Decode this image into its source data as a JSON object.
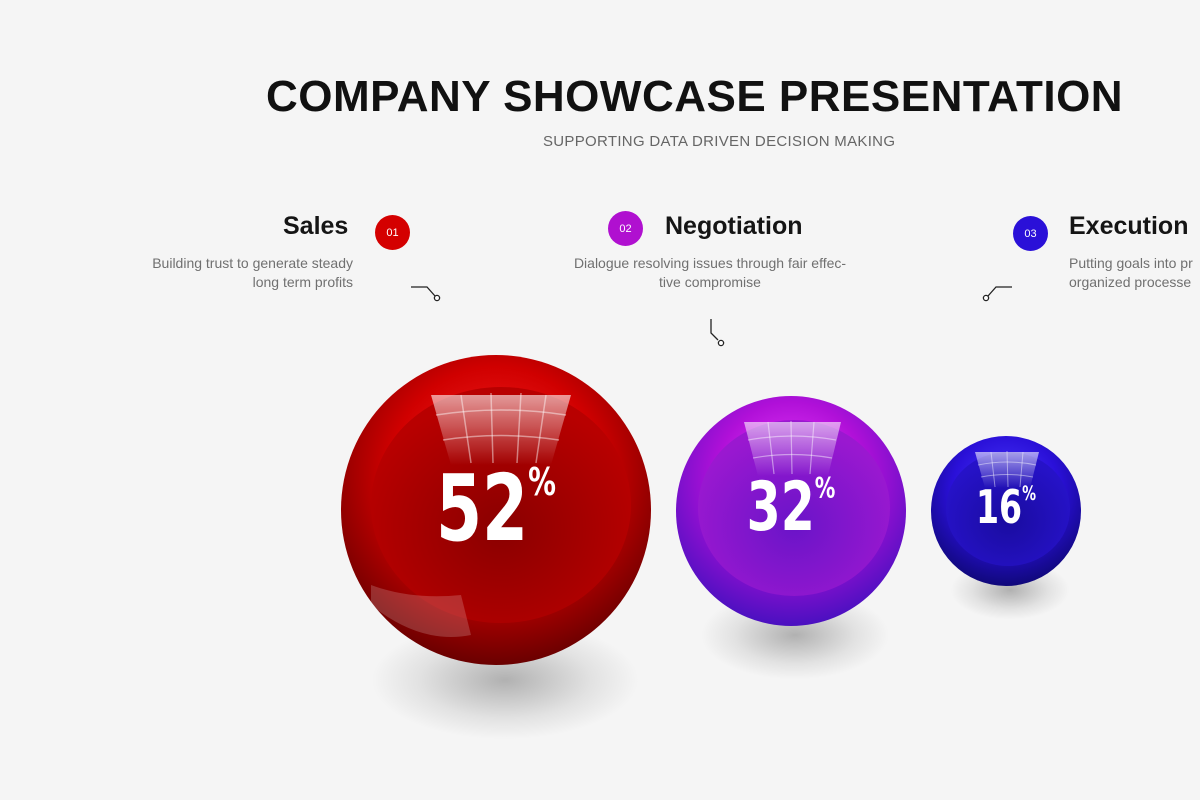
{
  "header": {
    "title": "COMPANY SHOWCASE PRESENTATION",
    "subtitle": "SUPPORTING DATA DRIVEN DECISION MAKING"
  },
  "items": [
    {
      "number": "01",
      "title": "Sales",
      "desc_line1": "Building trust to generate steady",
      "desc_line2": "long term profits",
      "value": "52",
      "unit": "%",
      "color": "#d40000"
    },
    {
      "number": "02",
      "title": "Negotiation",
      "desc_line1": "Dialogue resolving issues through fair effec-",
      "desc_line2": "tive compromise",
      "value": "32",
      "unit": "%",
      "color": "#b010d0"
    },
    {
      "number": "03",
      "title": "Execution",
      "desc_line1": "Putting goals into pr",
      "desc_line2": "organized processe",
      "value": "16",
      "unit": "%",
      "color": "#2a10d8"
    }
  ]
}
